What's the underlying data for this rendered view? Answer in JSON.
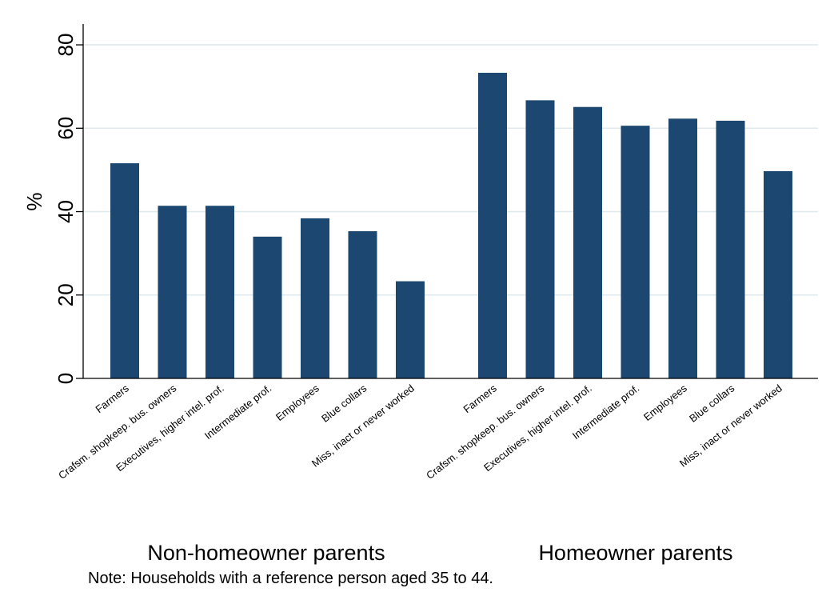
{
  "chart_data": {
    "type": "bar",
    "ylabel": "%",
    "ylim": [
      0,
      85
    ],
    "yticks": [
      0,
      20,
      40,
      60,
      80
    ],
    "grid": true,
    "bar_color": "#1c4770",
    "grid_color": "#dfe9ee",
    "groups": [
      {
        "name": "Non-homeowner parents",
        "categories": [
          "Farmers",
          "Crafsm. shopkeep. bus. owners",
          "Executives, higher intel. prof.",
          "Intermediate prof.",
          "Employees",
          "Blue collars",
          "Miss, inact or never worked"
        ],
        "values": [
          51.6,
          41.4,
          41.4,
          34.0,
          38.4,
          35.3,
          23.3
        ]
      },
      {
        "name": "Homeowner parents",
        "categories": [
          "Farmers",
          "Crafsm. shopkeep. bus. owners",
          "Executives, higher intel. prof.",
          "Intermediate prof.",
          "Employees",
          "Blue collars",
          "Miss, inact or never worked"
        ],
        "values": [
          73.3,
          66.7,
          65.1,
          60.6,
          62.3,
          61.8,
          49.7
        ]
      }
    ],
    "note": "Note: Households with a reference person aged 35 to 44."
  }
}
